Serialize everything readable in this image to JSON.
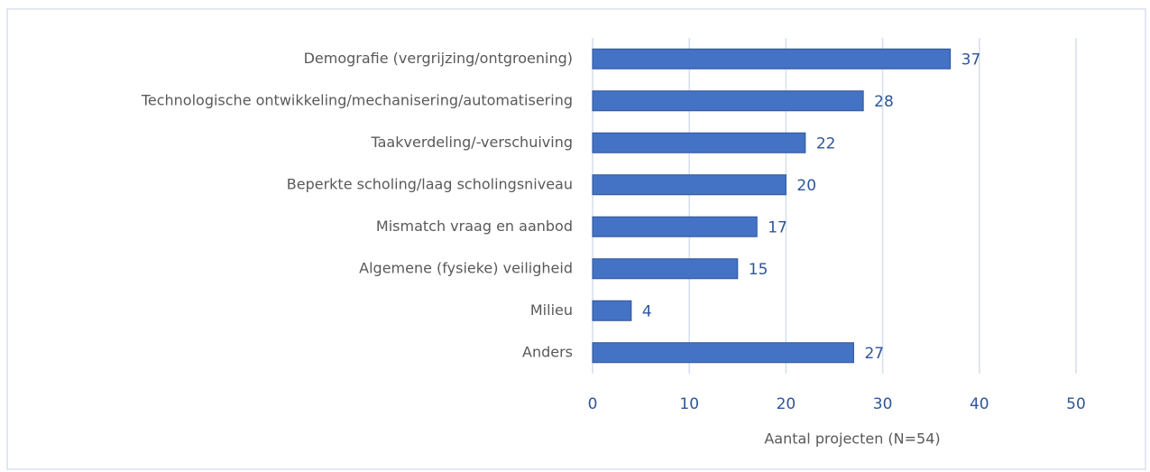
{
  "chart_data": {
    "type": "bar",
    "orientation": "horizontal",
    "categories": [
      "Demografie (vergrijzing/ontgroening)",
      "Technologische ontwikkeling/mechanisering/automatisering",
      "Taakverdeling/-verschuiving",
      "Beperkte scholing/laag scholingsniveau",
      "Mismatch vraag en aanbod",
      "Algemene (fysieke) veiligheid",
      "Milieu",
      "Anders"
    ],
    "values": [
      37,
      28,
      22,
      20,
      17,
      15,
      4,
      27
    ],
    "color": "#4472c4",
    "xlabel": "Aantal projecten (N=54)",
    "xlim": [
      0,
      50
    ],
    "xticks": [
      0,
      10,
      20,
      30,
      40,
      50
    ],
    "grid": true
  }
}
